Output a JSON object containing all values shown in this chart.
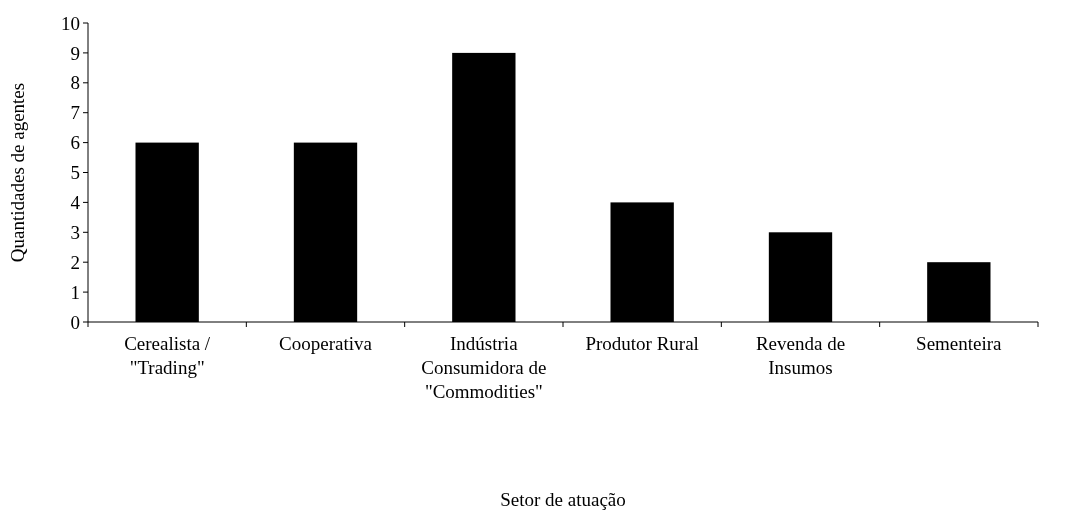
{
  "chart_data": {
    "type": "bar",
    "xlabel": "Setor de atuação",
    "ylabel": "Quantidades de agentes",
    "categories": [
      "Cerealista / \"Trading\"",
      "Cooperativa",
      "Indústria Consumidora de \"Commodities\"",
      "Produtor Rural",
      "Revenda de Insumos",
      "Sementeira"
    ],
    "values": [
      6,
      6,
      9,
      4,
      3,
      2
    ],
    "color": "#000000",
    "ylim": [
      0,
      10
    ],
    "yticks": [
      0,
      1,
      2,
      3,
      4,
      5,
      6,
      7,
      8,
      9,
      10
    ],
    "grid": false
  }
}
